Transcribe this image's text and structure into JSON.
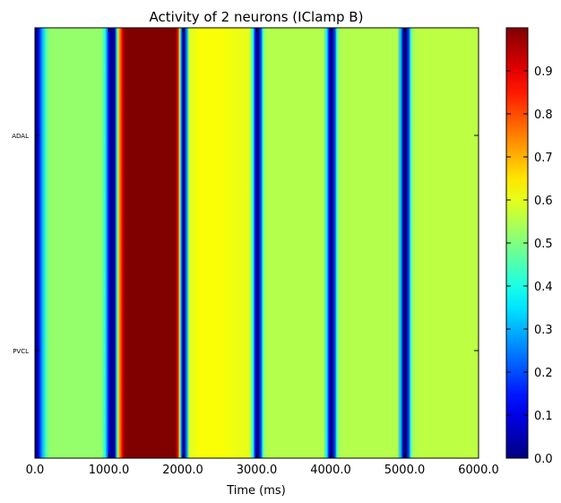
{
  "chart_data": {
    "type": "heatmap",
    "title": "Activity of 2 neurons (IClamp B)",
    "xlabel": "Time (ms)",
    "ylabel": "",
    "xlim": [
      0,
      6000
    ],
    "x_ticks": [
      0,
      1000,
      2000,
      3000,
      4000,
      5000,
      6000
    ],
    "x_tick_labels": [
      "0.0",
      "1000.0",
      "2000.0",
      "3000.0",
      "4000.0",
      "5000.0",
      "6000.0"
    ],
    "rows": [
      "ADAL",
      "PVCL"
    ],
    "colorbar": {
      "colormap": "jet",
      "range": [
        0,
        1
      ],
      "ticks": [
        0.0,
        0.1,
        0.2,
        0.3,
        0.4,
        0.5,
        0.6,
        0.7,
        0.8,
        0.9
      ],
      "tick_labels": [
        "0.0",
        "0.1",
        "0.2",
        "0.3",
        "0.4",
        "0.5",
        "0.6",
        "0.7",
        "0.8",
        "0.9"
      ]
    },
    "activity_profile": {
      "time_ms": [
        0,
        20,
        50,
        100,
        150,
        200,
        300,
        900,
        950,
        1000,
        1020,
        1050,
        1080,
        1100,
        1120,
        1150,
        1180,
        1200,
        1250,
        1300,
        1900,
        1930,
        1960,
        1980,
        2000,
        2020,
        2060,
        2080,
        2100,
        2150,
        2200,
        2500,
        2900,
        2950,
        2980,
        3000,
        3020,
        3060,
        3080,
        3100,
        3150,
        3200,
        3900,
        3950,
        3980,
        4000,
        4020,
        4060,
        4080,
        4100,
        4150,
        4200,
        4900,
        4950,
        4980,
        5000,
        5020,
        5060,
        5080,
        5100,
        5150,
        5200,
        6000
      ],
      "value": [
        0.0,
        0.02,
        0.1,
        0.3,
        0.45,
        0.52,
        0.52,
        0.52,
        0.4,
        0.12,
        0.02,
        0.0,
        0.05,
        0.3,
        0.55,
        0.75,
        0.88,
        0.97,
        1.0,
        1.0,
        1.0,
        0.9,
        0.55,
        0.25,
        0.04,
        0.02,
        0.3,
        0.55,
        0.6,
        0.6,
        0.62,
        0.62,
        0.6,
        0.4,
        0.12,
        0.02,
        0.0,
        0.2,
        0.4,
        0.52,
        0.55,
        0.55,
        0.55,
        0.35,
        0.1,
        0.02,
        0.0,
        0.2,
        0.4,
        0.52,
        0.55,
        0.55,
        0.55,
        0.3,
        0.05,
        0.0,
        0.0,
        0.2,
        0.4,
        0.52,
        0.55,
        0.56,
        0.56
      ]
    },
    "grid": false
  }
}
